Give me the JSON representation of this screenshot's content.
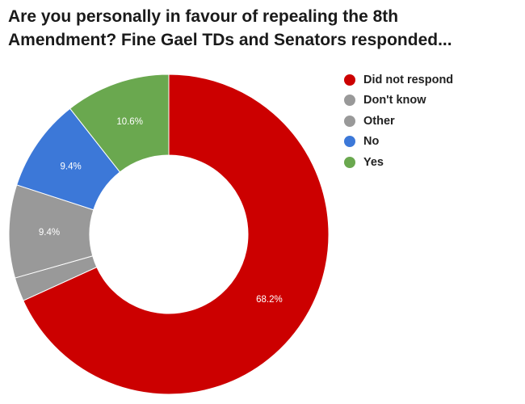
{
  "title_lines": [
    "Are you personally in favour of repealing the 8th",
    "Amendment? Fine Gael TDs and Senators responded..."
  ],
  "chart_data": {
    "type": "pie",
    "variant": "donut",
    "title": "Are you personally in favour of repealing the 8th Amendment? Fine Gael TDs and Senators responded...",
    "legend_position": "right",
    "slices": [
      {
        "name": "Did not respond",
        "value": 68.2,
        "label": "68.2%",
        "color": "#cc0000"
      },
      {
        "name": "Don't know",
        "value": 2.4,
        "label": "",
        "color": "#999999"
      },
      {
        "name": "Other",
        "value": 9.4,
        "label": "9.4%",
        "color": "#999999"
      },
      {
        "name": "No",
        "value": 9.4,
        "label": "9.4%",
        "color": "#3c78d8"
      },
      {
        "name": "Yes",
        "value": 10.6,
        "label": "10.6%",
        "color": "#6aa84f"
      }
    ]
  }
}
